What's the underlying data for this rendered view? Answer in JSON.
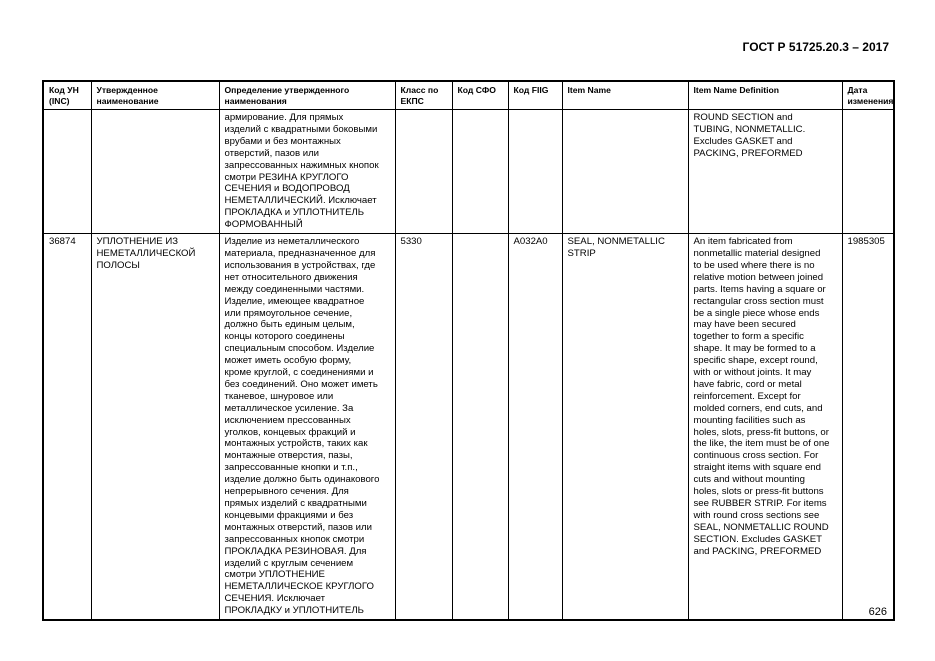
{
  "header": {
    "doc_code": "ГОСТ Р 51725.20.3 – 2017"
  },
  "footer": {
    "page_number": "626"
  },
  "table": {
    "columns": [
      "Код УН\n(INC)",
      "Утвержденное\nнаименование",
      "Определение утвержденного\nнаименования",
      "Класс по\nЕКПС",
      "Код СФО",
      "Код FIIG",
      "Item Name",
      "Item Name Definition",
      "Дата\nизменения"
    ],
    "rows": [
      {
        "inc": "",
        "name_ru": "",
        "definition_ru": "армирование. Для прямых\nизделий с квадратными боковыми\nврубами и без монтажных\nотверстий, пазов или\nзапрессованных нажимных кнопок\nсмотри РЕЗИНА КРУГЛОГО\nСЕЧЕНИЯ и ВОДОПРОВОД\nНЕМЕТАЛЛИЧЕСКИЙ. Исключает\nПРОКЛАДКА и УПЛОТНИТЕЛЬ\nФОРМОВАННЫЙ",
        "ekps": "",
        "sfo": "",
        "fiig": "",
        "item_name": "",
        "item_definition": "ROUND SECTION and\nTUBING, NONMETALLIC.\nExcludes GASKET and\nPACKING, PREFORMED",
        "date": ""
      },
      {
        "inc": "36874",
        "name_ru": "УПЛОТНЕНИЕ ИЗ\nНЕМЕТАЛЛИЧЕСКОЙ\nПОЛОСЫ",
        "definition_ru": "Изделие из неметаллического\nматериала, предназначенное для\nиспользования в устройствах, где\nнет относительного движения\nмежду соединенными частями.\nИзделие, имеющее квадратное\nили прямоугольное сечение,\nдолжно быть единым целым,\nконцы которого соединены\nспециальным способом. Изделие\nможет иметь особую форму,\nкроме круглой, с соединениями и\nбез соединений. Оно может иметь\nтканевое, шнуровое или\nметаллическое усиление. За\nисключением прессованных\nуголков, концевых фракций и\nмонтажных устройств, таких как\nмонтажные отверстия, пазы,\nзапрессованные кнопки и т.п.,\nизделие должно быть одинакового\nнепрерывного сечения. Для\nпрямых изделий с квадратными\nконцевыми фракциями и без\nмонтажных отверстий, пазов или\nзапрессованных кнопок смотри\nПРОКЛАДКА РЕЗИНОВАЯ. Для\nизделий с круглым сечением\nсмотри УПЛОТНЕНИЕ\nНЕМЕТАЛЛИЧЕСКОЕ КРУГЛОГО\nСЕЧЕНИЯ. Исключает\nПРОКЛАДКУ и УПЛОТНИТЕЛЬ",
        "ekps": "5330",
        "sfo": "",
        "fiig": "A032A0",
        "item_name": "SEAL, NONMETALLIC\nSTRIP",
        "item_definition": "An item fabricated from\nnonmetallic material designed\nto be used where there is no\nrelative motion between joined\nparts. Items having a square or\nrectangular cross section must\nbe a single piece whose ends\nmay have been secured\ntogether to form a specific\nshape. It may be formed to a\nspecific shape, except round,\nwith or without joints. It may\nhave fabric, cord or metal\nreinforcement. Except for\nmolded corners, end cuts, and\nmounting facilities such as\nholes, slots, press-fit buttons, or\nthe like, the item must be of one\ncontinuous cross section. For\nstraight items with square end\ncuts and without mounting\nholes, slots or press-fit buttons\nsee RUBBER STRIP. For items\nwith round cross sections see\nSEAL, NONMETALLIC ROUND\nSECTION. Excludes GASKET\nand PACKING, PREFORMED",
        "date": "1985305"
      }
    ]
  }
}
